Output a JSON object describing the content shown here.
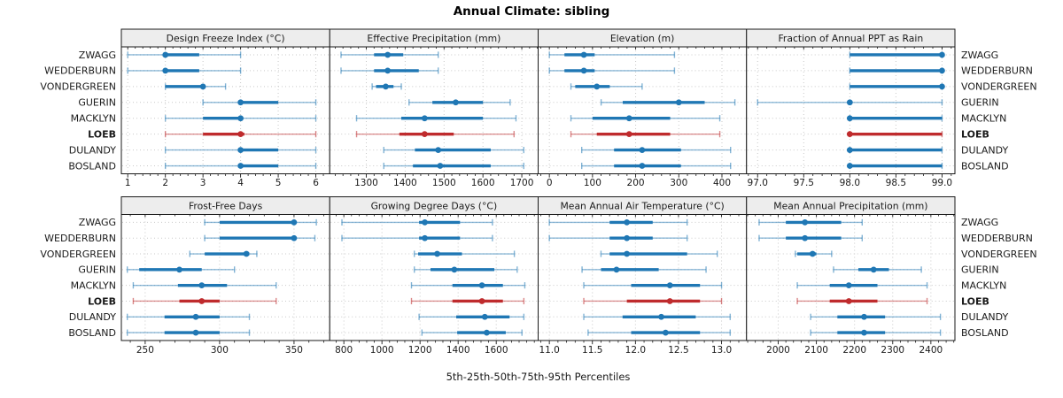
{
  "chart_data": {
    "type": "trellis dot-interval plot (percentile summaries by site)",
    "title": "Annual Climate: sibling",
    "footer": "5th-25th-50th-75th-95th Percentiles",
    "percentiles": [
      "5th",
      "25th",
      "50th",
      "75th",
      "95th"
    ],
    "sites": [
      "ZWAGG",
      "WEDDERBURN",
      "VONDERGREEN",
      "GUERIN",
      "MACKLYN",
      "LOEB",
      "DULANDY",
      "BOSLAND"
    ],
    "highlight_site": "LOEB",
    "legend_position": "none",
    "grid": "dotted major gridlines, vertical at ticks and horizontal per site row",
    "colors": {
      "normal": "#1f77b4",
      "highlight": "#bf2b2d",
      "strip_bg": "#ededed",
      "grid": "#c9c9c9",
      "border": "#1a1a1a",
      "text": "#1a1a1a"
    },
    "panels": [
      {
        "title": "Design Freeze Index (°C)",
        "xlim": [
          0.83,
          6.37
        ],
        "ticks": [
          1,
          2,
          3,
          4,
          5,
          6
        ],
        "tick_labels": [
          "1",
          "2",
          "3",
          "4",
          "5",
          "6"
        ],
        "minor": 0.2,
        "values": [
          [
            1,
            2,
            2,
            2.9,
            4
          ],
          [
            1,
            2,
            2,
            2.9,
            4
          ],
          [
            2,
            2,
            3,
            3,
            3.6
          ],
          [
            3,
            4,
            4,
            5,
            6
          ],
          [
            2,
            3,
            4,
            4,
            6
          ],
          [
            2,
            3,
            4,
            4.1,
            6
          ],
          [
            2,
            4,
            4,
            5,
            6
          ],
          [
            2,
            4,
            4,
            5,
            6
          ]
        ]
      },
      {
        "title": "Effective Precipitation (mm)",
        "xlim": [
          1206,
          1742
        ],
        "ticks": [
          1300,
          1400,
          1500,
          1600,
          1700
        ],
        "tick_labels": [
          "1300",
          "1400",
          "1500",
          "1600",
          "1700"
        ],
        "minor": 20,
        "values": [
          [
            1235,
            1320,
            1355,
            1395,
            1485
          ],
          [
            1235,
            1320,
            1355,
            1435,
            1485
          ],
          [
            1315,
            1325,
            1350,
            1370,
            1390
          ],
          [
            1410,
            1470,
            1530,
            1600,
            1670
          ],
          [
            1275,
            1390,
            1450,
            1600,
            1685
          ],
          [
            1275,
            1385,
            1450,
            1525,
            1680
          ],
          [
            1345,
            1425,
            1485,
            1620,
            1705
          ],
          [
            1345,
            1420,
            1490,
            1620,
            1705
          ]
        ]
      },
      {
        "title": "Elevation (m)",
        "xlim": [
          -26,
          457
        ],
        "ticks": [
          0,
          100,
          200,
          300,
          400
        ],
        "tick_labels": [
          "0",
          "100",
          "200",
          "300",
          "400"
        ],
        "minor": 20,
        "values": [
          [
            0,
            35,
            80,
            105,
            290
          ],
          [
            0,
            35,
            80,
            105,
            290
          ],
          [
            50,
            60,
            110,
            140,
            215
          ],
          [
            120,
            170,
            300,
            360,
            430
          ],
          [
            50,
            100,
            185,
            280,
            395
          ],
          [
            50,
            110,
            185,
            280,
            395
          ],
          [
            75,
            150,
            215,
            305,
            420
          ],
          [
            75,
            150,
            215,
            305,
            420
          ]
        ]
      },
      {
        "title": "Fraction of Annual PPT as Rain",
        "xlim": [
          96.88,
          99.14
        ],
        "ticks": [
          97.0,
          97.5,
          98.0,
          98.5,
          99.0
        ],
        "tick_labels": [
          "97.0",
          "97.5",
          "98.0",
          "98.5",
          "99.0"
        ],
        "minor": 0.1,
        "values": [
          [
            98,
            98,
            99,
            99,
            99
          ],
          [
            98,
            98,
            99,
            99,
            99
          ],
          [
            98,
            98,
            99,
            99,
            99
          ],
          [
            97,
            98,
            98,
            98,
            99
          ],
          [
            98,
            98,
            98,
            99,
            99
          ],
          [
            98,
            98,
            98,
            99,
            99
          ],
          [
            98,
            98,
            98,
            99,
            99
          ],
          [
            98,
            98,
            98,
            99,
            99
          ]
        ]
      },
      {
        "title": "Frost-Free Days",
        "xlim": [
          234,
          374
        ],
        "ticks": [
          250,
          300,
          350
        ],
        "tick_labels": [
          "250",
          "300",
          "350"
        ],
        "minor": 10,
        "values": [
          [
            290,
            300,
            350,
            350,
            365
          ],
          [
            290,
            300,
            350,
            350,
            364
          ],
          [
            280,
            290,
            318,
            320,
            325
          ],
          [
            238,
            246,
            273,
            288,
            310
          ],
          [
            242,
            272,
            288,
            305,
            338
          ],
          [
            242,
            273,
            288,
            300,
            338
          ],
          [
            238,
            263,
            284,
            300,
            320
          ],
          [
            238,
            263,
            284,
            300,
            320
          ]
        ]
      },
      {
        "title": "Growing Degree Days (°C)",
        "xlim": [
          726,
          1820
        ],
        "ticks": [
          800,
          1000,
          1200,
          1400,
          1600
        ],
        "tick_labels": [
          "800",
          "1000",
          "1200",
          "1400",
          "1600"
        ],
        "minor": 40,
        "values": [
          [
            790,
            1195,
            1225,
            1410,
            1580
          ],
          [
            790,
            1195,
            1225,
            1410,
            1580
          ],
          [
            1170,
            1190,
            1290,
            1420,
            1695
          ],
          [
            1170,
            1255,
            1380,
            1590,
            1710
          ],
          [
            1155,
            1370,
            1525,
            1635,
            1750
          ],
          [
            1155,
            1370,
            1525,
            1635,
            1745
          ],
          [
            1195,
            1390,
            1540,
            1670,
            1745
          ],
          [
            1210,
            1395,
            1550,
            1650,
            1735
          ]
        ]
      },
      {
        "title": "Mean Annual Air Temperature (°C)",
        "xlim": [
          10.87,
          13.29
        ],
        "ticks": [
          11.0,
          11.5,
          12.0,
          12.5,
          13.0
        ],
        "tick_labels": [
          "11.0",
          "11.5",
          "12.0",
          "12.5",
          "13.0"
        ],
        "minor": 0.1,
        "values": [
          [
            11.0,
            11.7,
            11.9,
            12.2,
            12.6
          ],
          [
            11.0,
            11.7,
            11.9,
            12.2,
            12.6
          ],
          [
            11.6,
            11.7,
            11.9,
            12.6,
            12.95
          ],
          [
            11.38,
            11.6,
            11.78,
            12.27,
            12.82
          ],
          [
            11.4,
            11.95,
            12.4,
            12.75,
            13.0
          ],
          [
            11.4,
            11.9,
            12.4,
            12.75,
            13.0
          ],
          [
            11.4,
            11.85,
            12.3,
            12.7,
            13.1
          ],
          [
            11.45,
            11.95,
            12.35,
            12.75,
            13.1
          ]
        ]
      },
      {
        "title": "Mean Annual Precipitation (mm)",
        "xlim": [
          1917,
          2463
        ],
        "ticks": [
          2000,
          2100,
          2200,
          2300,
          2400
        ],
        "tick_labels": [
          "2000",
          "2100",
          "2200",
          "2300",
          "2400"
        ],
        "minor": 20,
        "values": [
          [
            1950,
            2020,
            2070,
            2165,
            2220
          ],
          [
            1950,
            2020,
            2070,
            2165,
            2220
          ],
          [
            2045,
            2050,
            2090,
            2100,
            2140
          ],
          [
            2145,
            2210,
            2250,
            2290,
            2375
          ],
          [
            2050,
            2135,
            2185,
            2260,
            2390
          ],
          [
            2050,
            2135,
            2185,
            2260,
            2390
          ],
          [
            2085,
            2155,
            2225,
            2280,
            2425
          ],
          [
            2085,
            2155,
            2225,
            2280,
            2425
          ]
        ]
      }
    ]
  }
}
